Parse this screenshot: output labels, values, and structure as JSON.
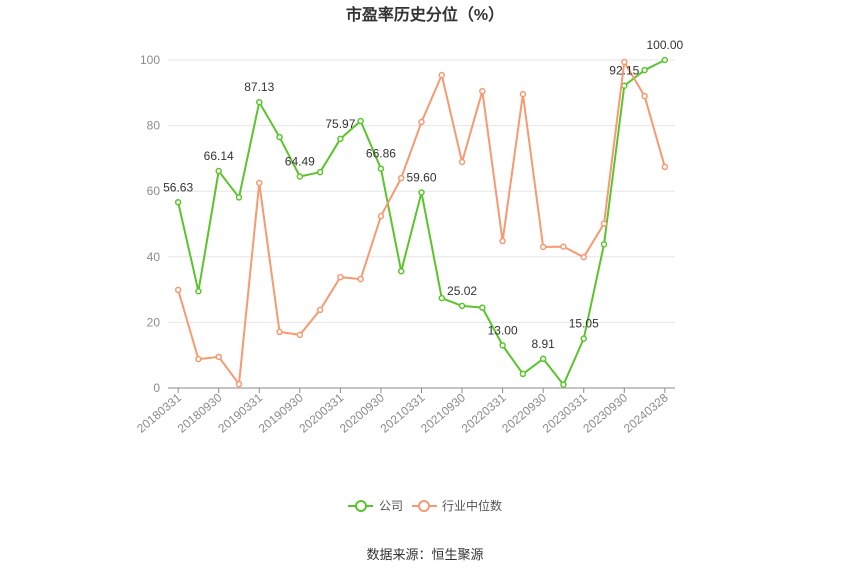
{
  "chart_data": {
    "type": "line",
    "title": "市盈率历史分位（%）",
    "categories": [
      "20180331",
      "",
      "20180930",
      "",
      "20190331",
      "",
      "20190930",
      "",
      "20200331",
      "",
      "20200930",
      "",
      "20210331",
      "",
      "20210930",
      "",
      "20220331",
      "",
      "20220930",
      "",
      "20230331",
      "",
      "20230930",
      "",
      "20240328"
    ],
    "ylim": [
      0,
      100
    ],
    "y_ticks": [
      0,
      20,
      40,
      60,
      80,
      100
    ],
    "grid": true,
    "legend_position": "bottom",
    "series": [
      {
        "name": "公司",
        "color": "#5bc42d",
        "values": [
          56.63,
          29.5,
          66.14,
          58.1,
          87.13,
          76.5,
          64.49,
          65.8,
          75.97,
          81.4,
          66.86,
          35.6,
          59.6,
          27.4,
          25.02,
          24.5,
          13.0,
          4.3,
          8.91,
          1.0,
          15.05,
          43.8,
          92.15,
          96.9,
          100.0
        ],
        "data_labels": [
          "56.63",
          null,
          "66.14",
          null,
          "87.13",
          null,
          "64.49",
          null,
          "75.97",
          null,
          "66.86",
          null,
          "59.60",
          null,
          "25.02",
          null,
          "13.00",
          null,
          "8.91",
          null,
          "15.05",
          null,
          "92.15",
          null,
          "100.00"
        ]
      },
      {
        "name": "行业中位数",
        "color": "#f59a72",
        "values": [
          29.9,
          8.8,
          9.5,
          1.2,
          62.5,
          17.1,
          16.2,
          23.8,
          33.8,
          33.2,
          52.4,
          64.0,
          81.1,
          95.4,
          68.9,
          90.5,
          44.8,
          89.6,
          43.0,
          43.1,
          39.9,
          50.1,
          99.4,
          89.0,
          67.4
        ]
      }
    ]
  },
  "source": "数据来源：恒生聚源"
}
